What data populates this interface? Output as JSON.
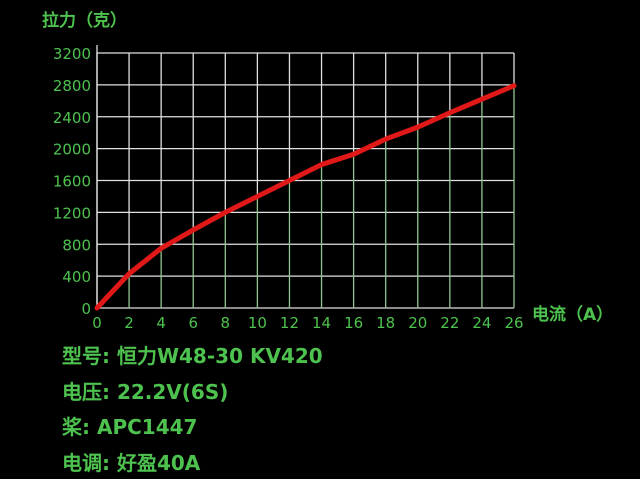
{
  "chart_data": {
    "type": "line",
    "title": "",
    "ylabel": "拉力（克）",
    "xlabel": "电流（A）",
    "xlim": [
      0,
      26
    ],
    "ylim": [
      0,
      3200
    ],
    "xticks": [
      0,
      2,
      4,
      6,
      8,
      10,
      12,
      14,
      16,
      18,
      20,
      22,
      24,
      26
    ],
    "yticks": [
      0,
      400,
      800,
      1200,
      1600,
      2000,
      2400,
      2800,
      3200
    ],
    "grid": true,
    "x": [
      0,
      2,
      4,
      6,
      8,
      10,
      12,
      14,
      16,
      18,
      20,
      22,
      24,
      26
    ],
    "y": [
      0,
      430,
      750,
      980,
      1200,
      1400,
      1600,
      1800,
      1930,
      2120,
      2270,
      2450,
      2620,
      2790
    ],
    "colors": {
      "line": "#e01818",
      "text": "#4ec24e",
      "grid_upper": "#e0e0e0",
      "grid_lower": "#8fc88f",
      "background": "#000000"
    }
  },
  "specs": [
    "型号: 恒力W48-30 KV420",
    "电压: 22.2V(6S)",
    "桨: APC1447",
    "电调: 好盈40A"
  ]
}
